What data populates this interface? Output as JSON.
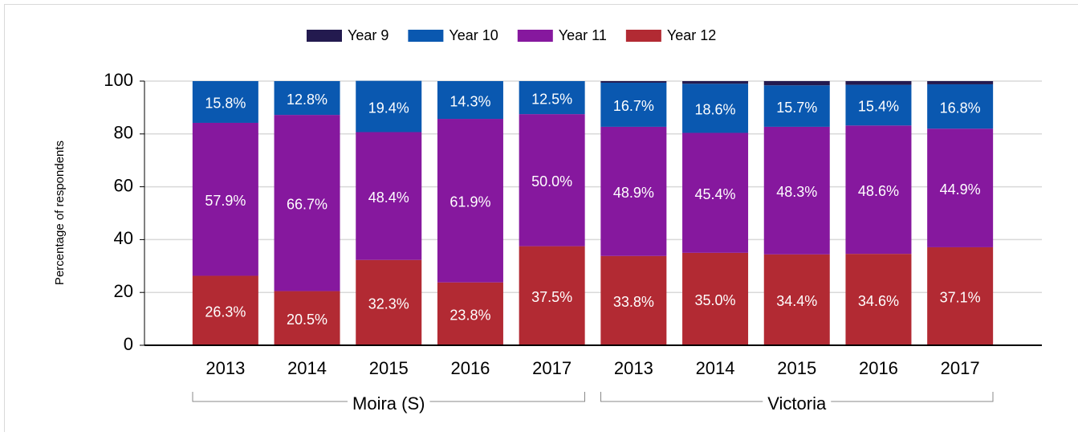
{
  "chart_data": {
    "type": "stacked-bar",
    "y_label": "Percentage of respondents",
    "groups": [
      {
        "name": "Moira (S)",
        "categories": [
          "2013",
          "2014",
          "2015",
          "2016",
          "2017"
        ]
      },
      {
        "name": "Victoria",
        "categories": [
          "2013",
          "2014",
          "2015",
          "2016",
          "2017"
        ]
      }
    ],
    "series": [
      {
        "name": "Year 9",
        "color": "#231a4f",
        "values": [
          0,
          0,
          0,
          0,
          0,
          0.6,
          1.0,
          1.6,
          1.4,
          1.2
        ]
      },
      {
        "name": "Year 10",
        "color": "#0a58b0",
        "values": [
          15.8,
          12.8,
          19.4,
          14.3,
          12.5,
          16.7,
          18.6,
          15.7,
          15.4,
          16.8
        ],
        "value_labels": [
          "15.8%",
          "12.8%",
          "19.4%",
          "14.3%",
          "12.5%",
          "16.7%",
          "18.6%",
          "15.7%",
          "15.4%",
          "16.8%"
        ]
      },
      {
        "name": "Year 11",
        "color": "#86189e",
        "values": [
          57.9,
          66.7,
          48.4,
          61.9,
          50.0,
          48.9,
          45.4,
          48.3,
          48.6,
          44.9
        ],
        "value_labels": [
          "57.9%",
          "66.7%",
          "48.4%",
          "61.9%",
          "50.0%",
          "48.9%",
          "45.4%",
          "48.3%",
          "48.6%",
          "44.9%"
        ]
      },
      {
        "name": "Year 12",
        "color": "#b22a33",
        "values": [
          26.3,
          20.5,
          32.3,
          23.8,
          37.5,
          33.8,
          35.0,
          34.4,
          34.6,
          37.1
        ],
        "value_labels": [
          "26.3%",
          "20.5%",
          "32.3%",
          "23.8%",
          "37.5%",
          "33.8%",
          "35.0%",
          "34.4%",
          "34.6%",
          "37.1%"
        ]
      }
    ],
    "ylim": [
      0,
      100
    ],
    "yticks": [
      0,
      20,
      40,
      60,
      80,
      100
    ],
    "grid": true,
    "legend": "top"
  }
}
